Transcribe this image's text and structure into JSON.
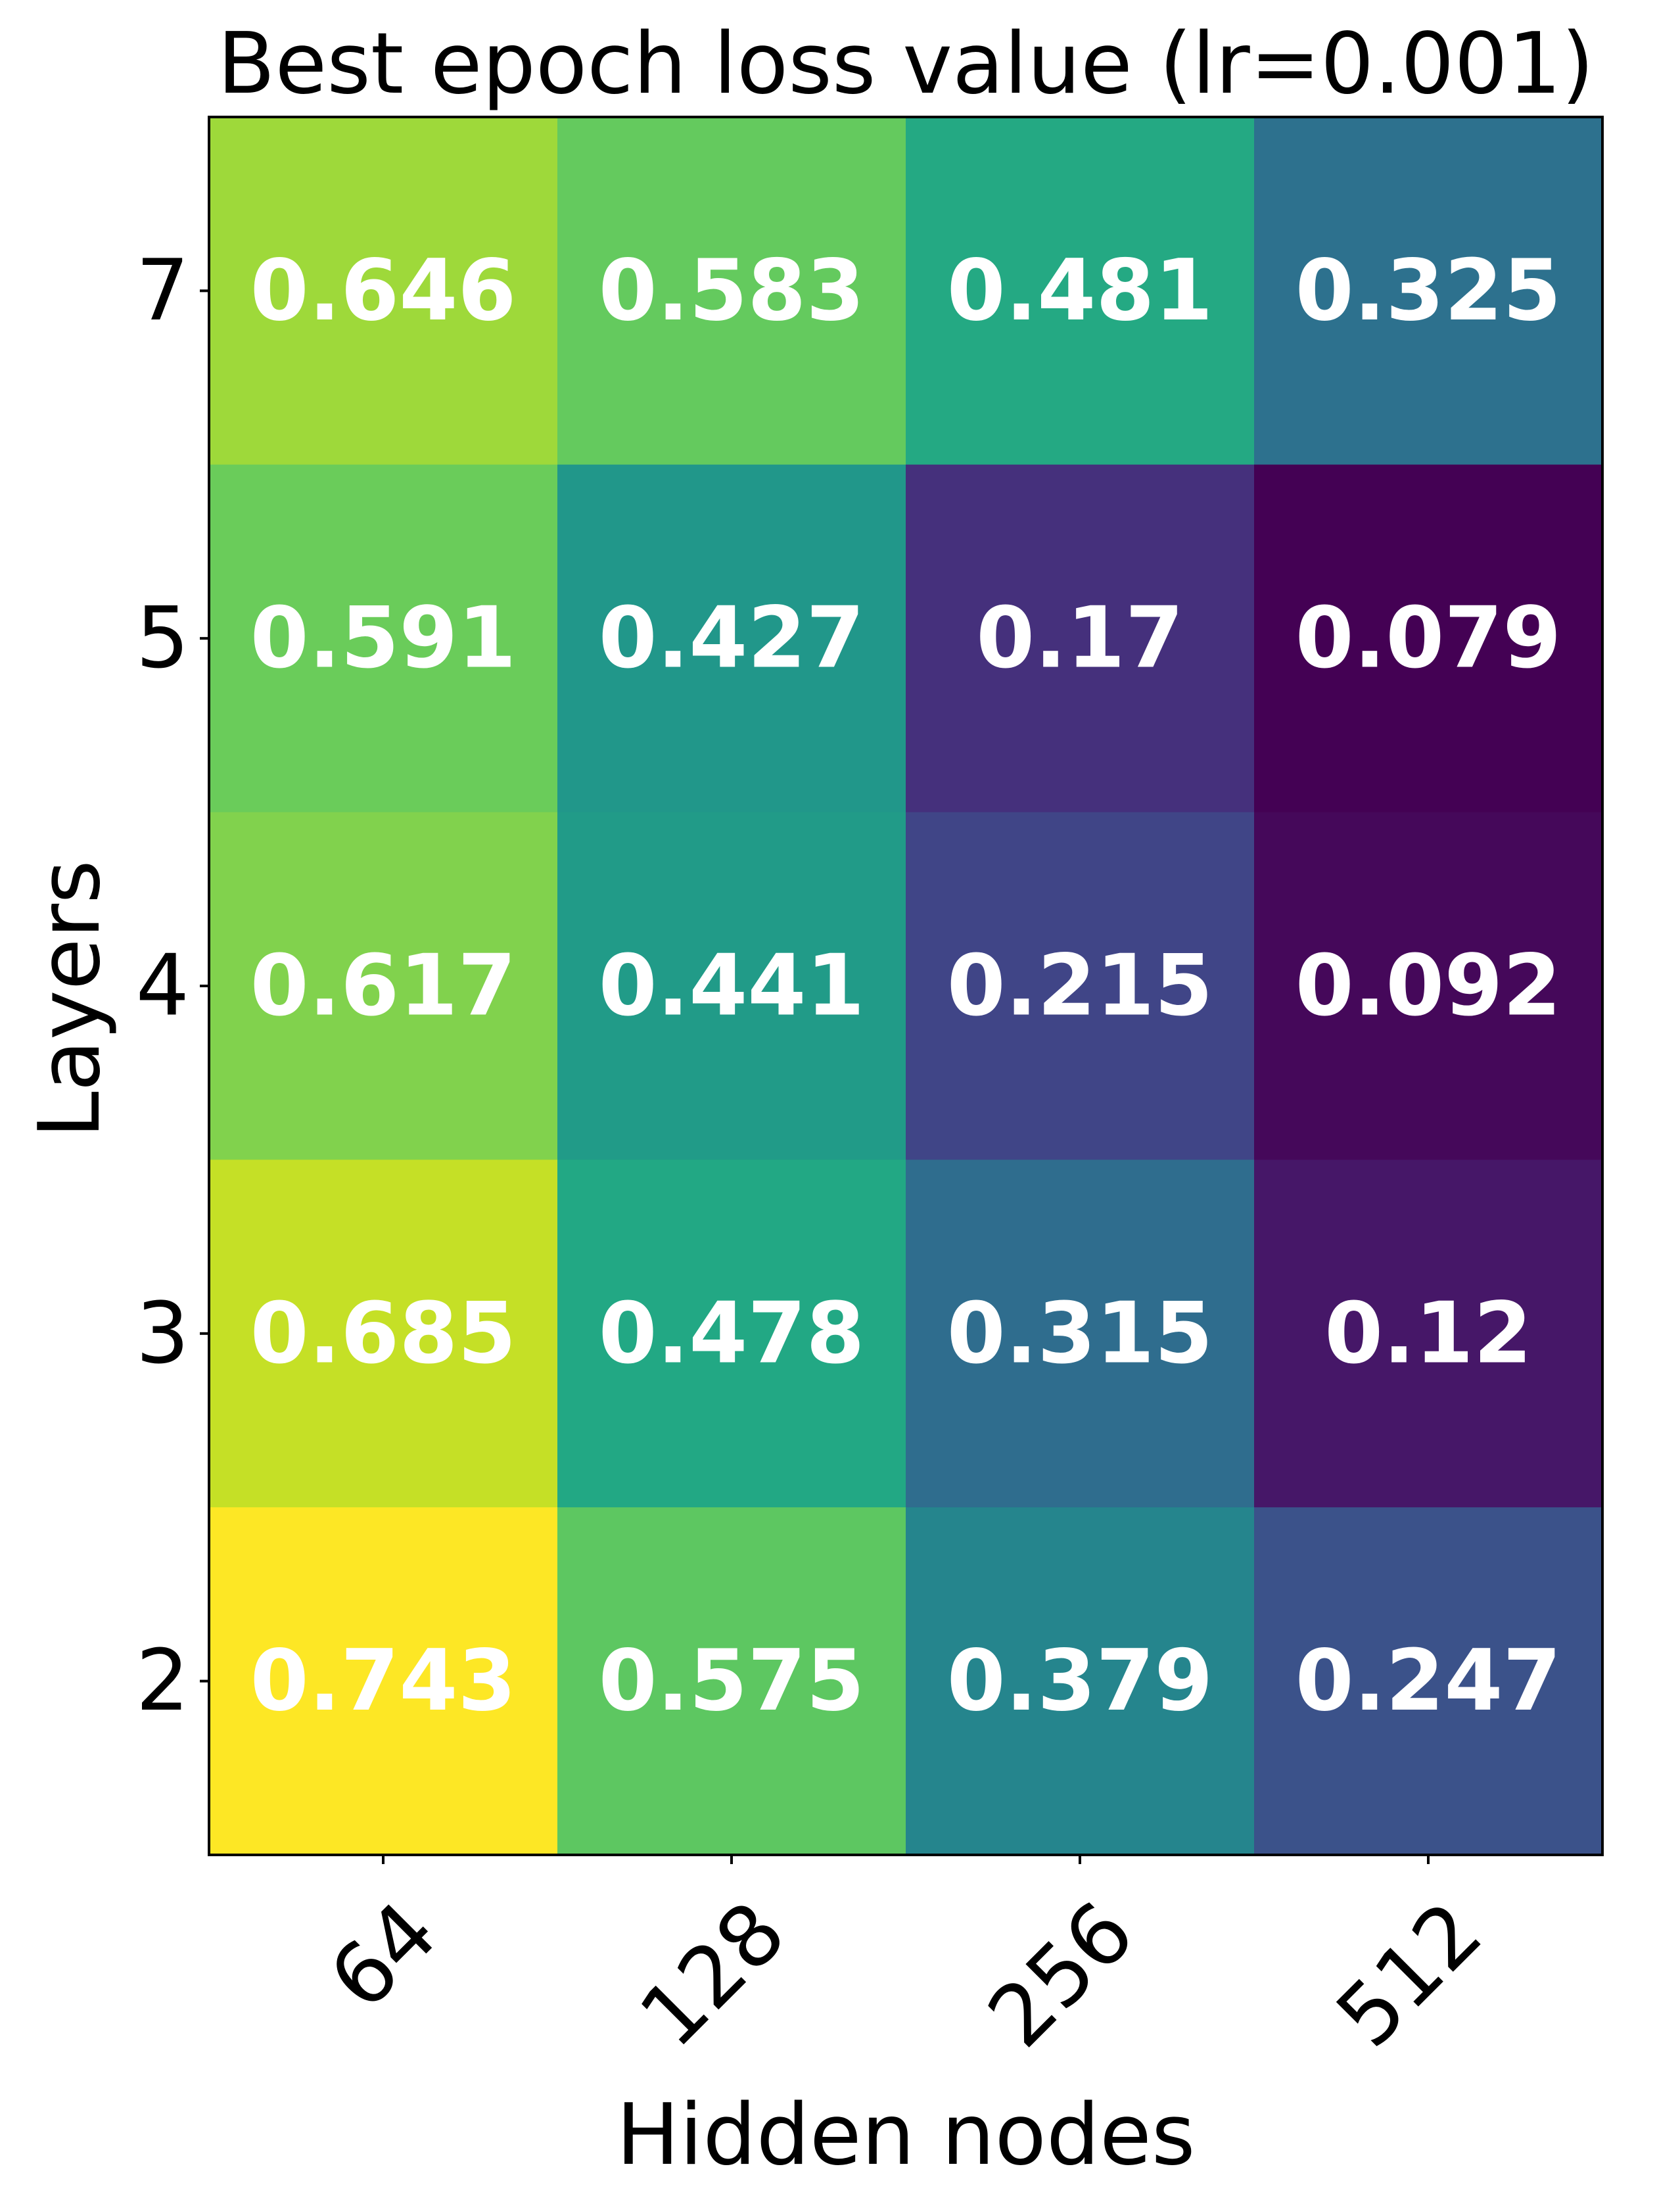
{
  "chart_data": {
    "type": "heatmap",
    "title": "Best epoch loss value (lr=0.001)",
    "xlabel": "Hidden nodes",
    "ylabel": "Layers",
    "x_categories": [
      "64",
      "128",
      "256",
      "512"
    ],
    "y_categories": [
      "7",
      "5",
      "4",
      "3",
      "2"
    ],
    "values": [
      [
        0.646,
        0.583,
        0.481,
        0.325
      ],
      [
        0.591,
        0.427,
        0.17,
        0.079
      ],
      [
        0.617,
        0.441,
        0.215,
        0.092
      ],
      [
        0.685,
        0.478,
        0.315,
        0.12
      ],
      [
        0.743,
        0.575,
        0.379,
        0.247
      ]
    ],
    "cell_labels": [
      [
        "0.646",
        "0.583",
        "0.481",
        "0.325"
      ],
      [
        "0.591",
        "0.427",
        "0.17",
        "0.079"
      ],
      [
        "0.617",
        "0.441",
        "0.215",
        "0.092"
      ],
      [
        "0.685",
        "0.478",
        "0.315",
        "0.12"
      ],
      [
        "0.743",
        "0.575",
        "0.379",
        "0.247"
      ]
    ],
    "colormap": "viridis",
    "value_range": [
      0.079,
      0.743
    ],
    "x_tick_rotation": 45
  }
}
